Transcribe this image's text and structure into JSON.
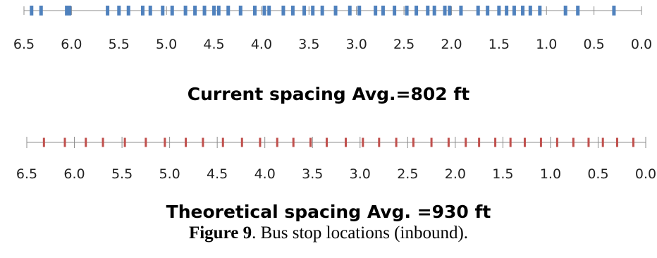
{
  "chart_data": [
    {
      "type": "scatter",
      "title": "Current spacing Avg.=802 ft",
      "xlim": [
        6.5,
        0.0
      ],
      "x_reversed": true,
      "tick_labels": [
        "6.5",
        "6.0",
        "5.5",
        "5.0",
        "4.5",
        "4.0",
        "3.5",
        "3.0",
        "2.5",
        "2.0",
        "1.5",
        "1.0",
        "0.5",
        "0.0"
      ],
      "marker_color": "#4f81bd",
      "stops": [
        6.42,
        6.32,
        6.05,
        6.02,
        5.62,
        5.5,
        5.4,
        5.25,
        5.17,
        5.04,
        4.94,
        4.8,
        4.7,
        4.6,
        4.5,
        4.45,
        4.35,
        4.22,
        4.07,
        3.97,
        3.92,
        3.77,
        3.67,
        3.55,
        3.46,
        3.36,
        3.22,
        3.07,
        2.97,
        2.8,
        2.72,
        2.6,
        2.47,
        2.37,
        2.25,
        2.18,
        2.07,
        2.02,
        1.9,
        1.72,
        1.62,
        1.5,
        1.42,
        1.34,
        1.25,
        1.17,
        1.07,
        0.8,
        0.67,
        0.29
      ]
    },
    {
      "type": "scatter",
      "title": "Theoretical spacing Avg. =930 ft",
      "xlim": [
        6.5,
        0.0
      ],
      "x_reversed": true,
      "tick_labels": [
        "6.5",
        "6.0",
        "5.5",
        "5.0",
        "4.5",
        "4.0",
        "3.5",
        "3.0",
        "2.5",
        "2.0",
        "1.5",
        "1.0",
        "0.5",
        "0.0"
      ],
      "marker_color": "#c0504d",
      "stops": [
        6.32,
        6.1,
        5.88,
        5.7,
        5.47,
        5.25,
        5.05,
        4.83,
        4.65,
        4.44,
        4.24,
        4.05,
        3.87,
        3.7,
        3.52,
        3.35,
        3.15,
        2.97,
        2.8,
        2.62,
        2.44,
        2.25,
        2.07,
        1.89,
        1.75,
        1.58,
        1.42,
        1.27,
        1.1,
        0.93,
        0.76,
        0.6,
        0.45,
        0.3,
        0.13
      ]
    }
  ],
  "caption": {
    "label": "Figure 9",
    "text": ". Bus stop locations (inbound)."
  }
}
